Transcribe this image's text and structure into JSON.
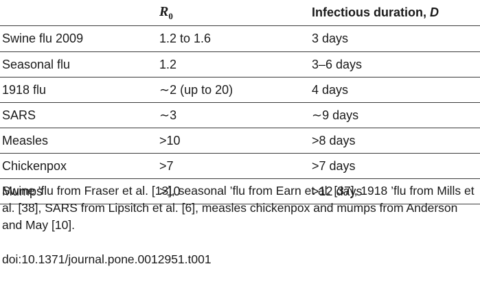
{
  "table": {
    "headers": {
      "name": "",
      "r0_symbol": "R",
      "r0_subscript": "0",
      "duration_prefix": "Infectious duration, ",
      "duration_var": "D"
    },
    "rows": [
      {
        "name": "Swine flu 2009",
        "r0": "1.2 to 1.6",
        "duration": "3 days"
      },
      {
        "name": "Seasonal flu",
        "r0": "1.2",
        "duration": "3–6 days"
      },
      {
        "name": "1918 flu",
        "r0": "∼2 (up to 20)",
        "duration": "4 days"
      },
      {
        "name": "SARS",
        "r0": "∼3",
        "duration": "∼9 days"
      },
      {
        "name": "Measles",
        "r0": ">10",
        "duration": ">8 days"
      },
      {
        "name": "Chickenpox",
        "r0": ">7",
        "duration": ">7 days"
      },
      {
        "name": "Mumps",
        "r0": ">10",
        "duration": ">12 days"
      }
    ]
  },
  "footnote": "Swine ’flu from Fraser et al. [13], seasonal ’flu from Earn et al. [37], 1918 ’flu from Mills et al. [38], SARS from Lipsitch et al. [6], measles chickenpox and mumps from Anderson and May [10].",
  "doi": "doi:10.1371/journal.pone.0012951.t001"
}
